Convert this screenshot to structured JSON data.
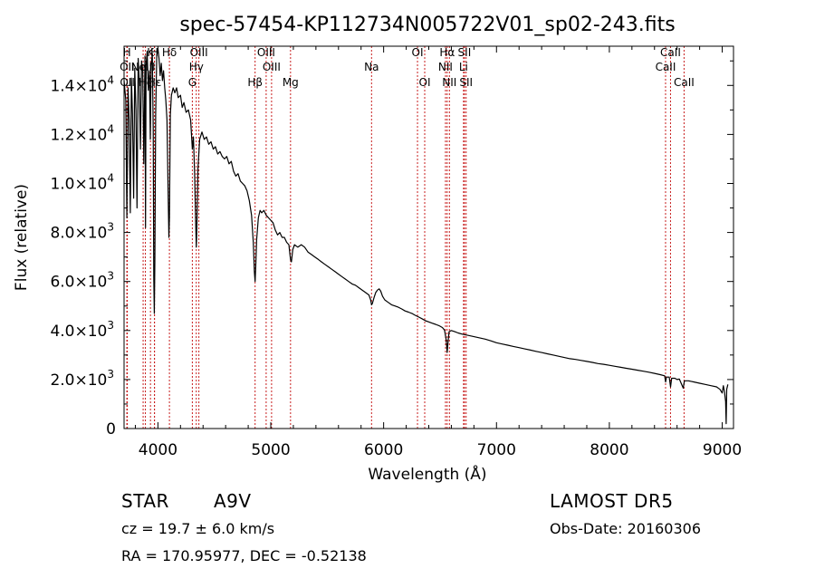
{
  "chart_data": {
    "type": "line",
    "title": "spec-57454-KP112734N005722V01_sp02-243.fits",
    "xlabel": "Wavelength (Å)",
    "ylabel": "Flux (relative)",
    "xlim": [
      3700,
      9100
    ],
    "ylim": [
      0,
      15600
    ],
    "x_ticks": [
      4000,
      5000,
      6000,
      7000,
      8000,
      9000
    ],
    "y_ticks": [
      {
        "value": 0,
        "mant": "0",
        "exp": ""
      },
      {
        "value": 2000,
        "mant": "2.0×10",
        "exp": "3"
      },
      {
        "value": 4000,
        "mant": "4.0×10",
        "exp": "3"
      },
      {
        "value": 6000,
        "mant": "6.0×10",
        "exp": "3"
      },
      {
        "value": 8000,
        "mant": "8.0×10",
        "exp": "3"
      },
      {
        "value": 10000,
        "mant": "1.0×10",
        "exp": "4"
      },
      {
        "value": 12000,
        "mant": "1.2×10",
        "exp": "4"
      },
      {
        "value": 14000,
        "mant": "1.4×10",
        "exp": "4"
      }
    ],
    "grid": false,
    "series": [
      {
        "color": "#000000",
        "points": [
          [
            3700,
            14200
          ],
          [
            3715,
            13400
          ],
          [
            3725,
            8600
          ],
          [
            3735,
            13900
          ],
          [
            3745,
            12600
          ],
          [
            3755,
            8800
          ],
          [
            3765,
            14300
          ],
          [
            3775,
            12800
          ],
          [
            3785,
            9400
          ],
          [
            3795,
            14700
          ],
          [
            3805,
            13000
          ],
          [
            3815,
            9000
          ],
          [
            3825,
            15100
          ],
          [
            3835,
            14200
          ],
          [
            3845,
            11400
          ],
          [
            3855,
            15000
          ],
          [
            3865,
            14600
          ],
          [
            3875,
            10800
          ],
          [
            3885,
            15200
          ],
          [
            3890,
            8200
          ],
          [
            3895,
            14800
          ],
          [
            3905,
            15400
          ],
          [
            3915,
            13800
          ],
          [
            3925,
            14600
          ],
          [
            3933,
            11800
          ],
          [
            3940,
            14800
          ],
          [
            3950,
            15300
          ],
          [
            3958,
            12200
          ],
          [
            3963,
            6200
          ],
          [
            3968,
            4700
          ],
          [
            3973,
            6800
          ],
          [
            3980,
            12800
          ],
          [
            3990,
            15200
          ],
          [
            4000,
            15500
          ],
          [
            4010,
            15100
          ],
          [
            4020,
            14400
          ],
          [
            4030,
            14900
          ],
          [
            4040,
            14200
          ],
          [
            4050,
            14600
          ],
          [
            4060,
            13900
          ],
          [
            4070,
            13400
          ],
          [
            4080,
            12600
          ],
          [
            4090,
            9800
          ],
          [
            4097,
            7800
          ],
          [
            4102,
            8600
          ],
          [
            4110,
            12800
          ],
          [
            4120,
            13600
          ],
          [
            4135,
            13900
          ],
          [
            4150,
            13700
          ],
          [
            4165,
            13900
          ],
          [
            4180,
            13500
          ],
          [
            4200,
            13600
          ],
          [
            4215,
            13100
          ],
          [
            4230,
            13300
          ],
          [
            4250,
            12900
          ],
          [
            4270,
            13000
          ],
          [
            4290,
            12600
          ],
          [
            4305,
            11400
          ],
          [
            4315,
            11900
          ],
          [
            4325,
            10400
          ],
          [
            4335,
            8400
          ],
          [
            4340,
            7400
          ],
          [
            4345,
            8200
          ],
          [
            4355,
            10600
          ],
          [
            4370,
            11800
          ],
          [
            4390,
            12100
          ],
          [
            4410,
            11800
          ],
          [
            4430,
            11900
          ],
          [
            4450,
            11600
          ],
          [
            4470,
            11700
          ],
          [
            4490,
            11400
          ],
          [
            4510,
            11500
          ],
          [
            4530,
            11200
          ],
          [
            4550,
            11300
          ],
          [
            4570,
            11100
          ],
          [
            4590,
            11000
          ],
          [
            4610,
            11100
          ],
          [
            4630,
            10800
          ],
          [
            4650,
            10900
          ],
          [
            4670,
            10500
          ],
          [
            4690,
            10300
          ],
          [
            4710,
            10400
          ],
          [
            4730,
            10100
          ],
          [
            4750,
            10000
          ],
          [
            4770,
            9900
          ],
          [
            4790,
            9700
          ],
          [
            4810,
            9300
          ],
          [
            4830,
            8700
          ],
          [
            4845,
            7600
          ],
          [
            4855,
            6400
          ],
          [
            4861,
            6000
          ],
          [
            4866,
            6500
          ],
          [
            4875,
            7700
          ],
          [
            4890,
            8600
          ],
          [
            4905,
            8900
          ],
          [
            4920,
            8800
          ],
          [
            4940,
            8900
          ],
          [
            4960,
            8700
          ],
          [
            4980,
            8600
          ],
          [
            5000,
            8500
          ],
          [
            5020,
            8400
          ],
          [
            5040,
            8100
          ],
          [
            5060,
            7900
          ],
          [
            5080,
            8000
          ],
          [
            5100,
            7800
          ],
          [
            5120,
            7800
          ],
          [
            5140,
            7600
          ],
          [
            5160,
            7500
          ],
          [
            5175,
            6900
          ],
          [
            5183,
            6800
          ],
          [
            5195,
            7300
          ],
          [
            5210,
            7500
          ],
          [
            5240,
            7400
          ],
          [
            5270,
            7500
          ],
          [
            5300,
            7400
          ],
          [
            5330,
            7200
          ],
          [
            5360,
            7100
          ],
          [
            5390,
            7000
          ],
          [
            5420,
            6900
          ],
          [
            5450,
            6800
          ],
          [
            5480,
            6700
          ],
          [
            5510,
            6600
          ],
          [
            5540,
            6500
          ],
          [
            5570,
            6400
          ],
          [
            5600,
            6300
          ],
          [
            5630,
            6200
          ],
          [
            5660,
            6100
          ],
          [
            5690,
            6000
          ],
          [
            5720,
            5900
          ],
          [
            5750,
            5850
          ],
          [
            5780,
            5750
          ],
          [
            5810,
            5650
          ],
          [
            5840,
            5550
          ],
          [
            5870,
            5450
          ],
          [
            5885,
            5250
          ],
          [
            5893,
            5050
          ],
          [
            5900,
            5100
          ],
          [
            5915,
            5350
          ],
          [
            5930,
            5550
          ],
          [
            5945,
            5650
          ],
          [
            5960,
            5700
          ],
          [
            5975,
            5600
          ],
          [
            5990,
            5400
          ],
          [
            6010,
            5250
          ],
          [
            6040,
            5150
          ],
          [
            6070,
            5050
          ],
          [
            6100,
            5000
          ],
          [
            6130,
            4950
          ],
          [
            6160,
            4880
          ],
          [
            6190,
            4800
          ],
          [
            6220,
            4750
          ],
          [
            6250,
            4700
          ],
          [
            6280,
            4620
          ],
          [
            6310,
            4550
          ],
          [
            6340,
            4480
          ],
          [
            6370,
            4400
          ],
          [
            6400,
            4350
          ],
          [
            6430,
            4300
          ],
          [
            6460,
            4250
          ],
          [
            6490,
            4200
          ],
          [
            6520,
            4120
          ],
          [
            6540,
            4020
          ],
          [
            6555,
            3600
          ],
          [
            6563,
            3100
          ],
          [
            6570,
            3500
          ],
          [
            6580,
            3950
          ],
          [
            6600,
            4000
          ],
          [
            6630,
            3950
          ],
          [
            6660,
            3900
          ],
          [
            6700,
            3850
          ],
          [
            6750,
            3800
          ],
          [
            6800,
            3750
          ],
          [
            6850,
            3700
          ],
          [
            6900,
            3650
          ],
          [
            6950,
            3580
          ],
          [
            7000,
            3500
          ],
          [
            7050,
            3450
          ],
          [
            7100,
            3400
          ],
          [
            7150,
            3350
          ],
          [
            7200,
            3300
          ],
          [
            7250,
            3250
          ],
          [
            7300,
            3200
          ],
          [
            7350,
            3150
          ],
          [
            7400,
            3100
          ],
          [
            7450,
            3050
          ],
          [
            7500,
            3000
          ],
          [
            7550,
            2950
          ],
          [
            7600,
            2900
          ],
          [
            7650,
            2850
          ],
          [
            7700,
            2820
          ],
          [
            7750,
            2780
          ],
          [
            7800,
            2740
          ],
          [
            7850,
            2700
          ],
          [
            7900,
            2650
          ],
          [
            7950,
            2620
          ],
          [
            8000,
            2580
          ],
          [
            8050,
            2540
          ],
          [
            8100,
            2500
          ],
          [
            8150,
            2460
          ],
          [
            8200,
            2420
          ],
          [
            8250,
            2380
          ],
          [
            8300,
            2340
          ],
          [
            8350,
            2300
          ],
          [
            8400,
            2250
          ],
          [
            8450,
            2200
          ],
          [
            8490,
            2150
          ],
          [
            8498,
            1900
          ],
          [
            8506,
            2100
          ],
          [
            8530,
            2100
          ],
          [
            8542,
            1700
          ],
          [
            8552,
            2050
          ],
          [
            8580,
            2050
          ],
          [
            8600,
            2000
          ],
          [
            8620,
            2020
          ],
          [
            8655,
            1650
          ],
          [
            8665,
            1950
          ],
          [
            8700,
            1950
          ],
          [
            8750,
            1900
          ],
          [
            8800,
            1850
          ],
          [
            8850,
            1800
          ],
          [
            8900,
            1750
          ],
          [
            8950,
            1700
          ],
          [
            8980,
            1600
          ],
          [
            9000,
            1450
          ],
          [
            9010,
            1750
          ],
          [
            9020,
            1500
          ],
          [
            9030,
            1100
          ],
          [
            9035,
            200
          ],
          [
            9040,
            1600
          ],
          [
            9050,
            1800
          ]
        ]
      }
    ],
    "lines": [
      {
        "label": "H",
        "x": 3725,
        "row": 1
      },
      {
        "label": "K",
        "x": 3934,
        "row": 1
      },
      {
        "label": "H",
        "x": 3969,
        "row": 1
      },
      {
        "label": "Hδ",
        "x": 4102,
        "row": 1
      },
      {
        "label": "OIII",
        "x": 4363,
        "row": 1
      },
      {
        "label": "OIII",
        "x": 4959,
        "row": 1
      },
      {
        "label": "OI",
        "x": 6300,
        "row": 1
      },
      {
        "label": "Hα",
        "x": 6563,
        "row": 1
      },
      {
        "label": "SII",
        "x": 6716,
        "row": 1
      },
      {
        "label": "CaII",
        "x": 8542,
        "row": 1
      },
      {
        "label": "OII",
        "x": 3727,
        "row": 2
      },
      {
        "label": "NeIII",
        "x": 3869,
        "row": 2
      },
      {
        "label": "Hγ",
        "x": 4340,
        "row": 2
      },
      {
        "label": "OIII",
        "x": 5007,
        "row": 2
      },
      {
        "label": "Na",
        "x": 5893,
        "row": 2
      },
      {
        "label": "NII",
        "x": 6548,
        "row": 2
      },
      {
        "label": "Li",
        "x": 6708,
        "row": 2
      },
      {
        "label": "CaII",
        "x": 8498,
        "row": 2
      },
      {
        "label": "OII",
        "x": 3729,
        "row": 3
      },
      {
        "label": "Hζ",
        "x": 3889,
        "row": 3
      },
      {
        "label": "Hε",
        "x": 3970,
        "row": 3
      },
      {
        "label": "G",
        "x": 4305,
        "row": 3
      },
      {
        "label": "Hβ",
        "x": 4861,
        "row": 3
      },
      {
        "label": "Mg",
        "x": 5175,
        "row": 3
      },
      {
        "label": "OI",
        "x": 6364,
        "row": 3
      },
      {
        "label": "NII",
        "x": 6583,
        "row": 3
      },
      {
        "label": "SII",
        "x": 6731,
        "row": 3
      },
      {
        "label": "CaII",
        "x": 8662,
        "row": 3
      }
    ]
  },
  "info": {
    "object": "STAR",
    "subclass": "A9V",
    "survey": "LAMOST DR5",
    "cz": "cz = 19.7 ± 6.0 km/s",
    "obs_date": "Obs-Date: 20160306",
    "coords": "RA = 170.95977, DEC =  -0.52138"
  }
}
